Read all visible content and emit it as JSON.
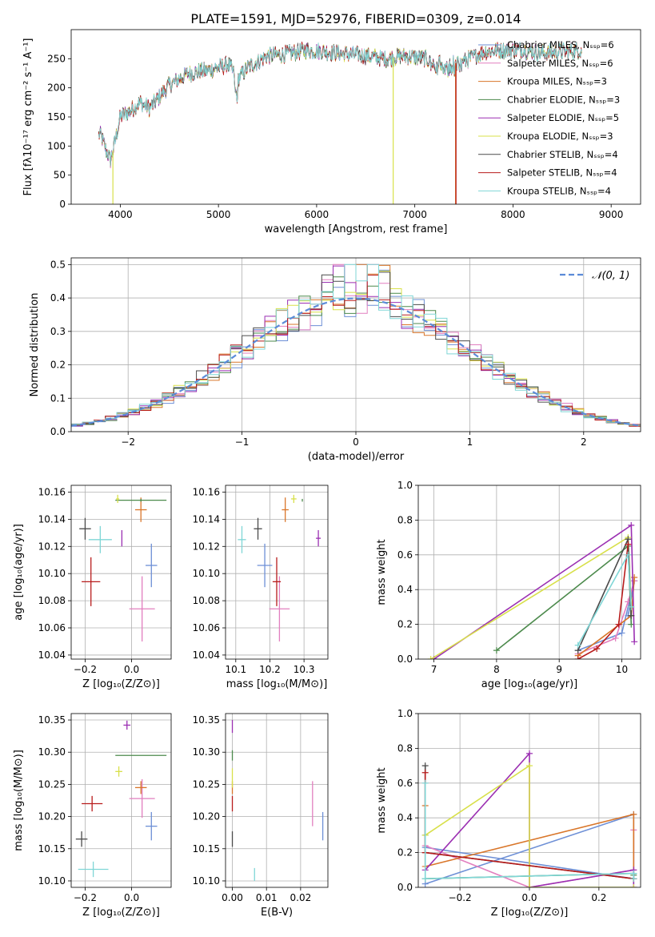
{
  "title": "PLATE=1591, MJD=52976, FIBERID=0309, z=0.014",
  "colors": {
    "Chabrier MILES": "#6d8fd6",
    "Salpeter MILES": "#e27fbf",
    "Kroupa MILES": "#d9762a",
    "Chabrier ELODIE": "#4c8a4c",
    "Salpeter ELODIE": "#9b2fb2",
    "Kroupa ELODIE": "#d8e04a",
    "Chabrier STELIB": "#4a4a4a",
    "Salpeter STELIB": "#b81c1c",
    "Kroupa STELIB": "#7fd6d6"
  },
  "chart_data": [
    {
      "id": "spectrum",
      "type": "line",
      "title": "PLATE=1591, MJD=52976, FIBERID=0309, z=0.014",
      "xlabel": "wavelength [Angstrom, rest frame]",
      "ylabel": "Flux [fλ10⁻¹⁷ erg cm⁻² s⁻¹ A⁻¹]",
      "xlim": [
        3500,
        9300
      ],
      "ylim": [
        0,
        300
      ],
      "xticks": [
        4000,
        5000,
        6000,
        7000,
        8000,
        9000
      ],
      "yticks": [
        0,
        50,
        100,
        150,
        200,
        250
      ],
      "grid": false,
      "legend_position": "top-right",
      "legend": [
        "Chabrier MILES, Nₛₛₚ=6",
        "Salpeter MILES, Nₛₛₚ=6",
        "Kroupa MILES, Nₛₛₚ=3",
        "Chabrier ELODIE, Nₛₛₚ=3",
        "Salpeter ELODIE, Nₛₛₚ=5",
        "Kroupa ELODIE, Nₛₛₚ=3",
        "Chabrier STELIB, Nₛₛₚ=4",
        "Salpeter STELIB, Nₛₛₚ=4",
        "Kroupa STELIB, Nₛₛₚ=4"
      ],
      "continuum": {
        "x": [
          3800,
          3850,
          3900,
          3950,
          4000,
          4100,
          4200,
          4300,
          4400,
          4500,
          4700,
          4900,
          5100,
          5200,
          5300,
          5500,
          5700,
          5900,
          6100,
          6300,
          6500,
          6700,
          6900,
          7100,
          7300,
          7500,
          7700,
          7900,
          8100,
          8300,
          8500,
          8700
        ],
        "y": [
          120,
          95,
          75,
          110,
          150,
          160,
          175,
          165,
          185,
          205,
          225,
          230,
          240,
          215,
          235,
          255,
          258,
          265,
          262,
          258,
          255,
          250,
          255,
          250,
          240,
          245,
          262,
          265,
          265,
          260,
          262,
          265
        ]
      },
      "drops": [
        {
          "series": "Kroupa ELODIE",
          "x": 3925,
          "to": 0
        },
        {
          "series": "Kroupa ELODIE",
          "x": 6780,
          "to": 0
        },
        {
          "series": "Kroupa MILES",
          "x": 7415,
          "to": 0
        },
        {
          "series": "Salpeter STELIB",
          "x": 7420,
          "to": 0
        }
      ]
    },
    {
      "id": "residuals",
      "type": "step",
      "xlabel": "(data-model)/error",
      "ylabel": "Normed distribution",
      "xlim": [
        -2.5,
        2.5
      ],
      "ylim": [
        0,
        0.52
      ],
      "xticks": [
        -2,
        -1,
        0,
        1,
        2
      ],
      "yticks": [
        0.0,
        0.1,
        0.2,
        0.3,
        0.4,
        0.5
      ],
      "grid": true,
      "legend_position": "top-right",
      "legend": [
        "𝒩(0, 1)"
      ],
      "reference_curve": "normal(0,1)",
      "bin_width": 0.1,
      "histogram_peak": 0.5
    },
    {
      "id": "age-vs-Z",
      "type": "errorbar",
      "xlabel": "Z [log₁₀(Z/Z⊙)]",
      "ylabel": "age  [log₁₀(age/yr)]",
      "xlim": [
        -0.26,
        0.17
      ],
      "ylim": [
        10.037,
        10.165
      ],
      "xticks": [
        -0.2,
        0.0
      ],
      "xticklabels": [
        "−0.2",
        "0.0"
      ],
      "yticks": [
        10.04,
        10.06,
        10.08,
        10.1,
        10.12,
        10.14,
        10.16
      ],
      "grid": true,
      "points": [
        {
          "series": "Chabrier MILES",
          "x": 0.085,
          "y": 10.106,
          "xerr": 0.025,
          "yerr": 0.016
        },
        {
          "series": "Salpeter MILES",
          "x": 0.045,
          "y": 10.074,
          "xerr": 0.055,
          "yerr": 0.024
        },
        {
          "series": "Kroupa MILES",
          "x": 0.04,
          "y": 10.147,
          "xerr": 0.025,
          "yerr": 0.009
        },
        {
          "series": "Chabrier ELODIE",
          "x": 0.04,
          "y": 10.154,
          "xerr": 0.11,
          "yerr": 0.001
        },
        {
          "series": "Salpeter ELODIE",
          "x": -0.042,
          "y": 10.126,
          "xerr": 0.0,
          "yerr": 0.006
        },
        {
          "series": "Kroupa ELODIE",
          "x": -0.06,
          "y": 10.155,
          "xerr": 0.007,
          "yerr": 0.003
        },
        {
          "series": "Chabrier STELIB",
          "x": -0.2,
          "y": 10.133,
          "xerr": 0.025,
          "yerr": 0.008
        },
        {
          "series": "Salpeter STELIB",
          "x": -0.175,
          "y": 10.094,
          "xerr": 0.04,
          "yerr": 0.018
        },
        {
          "series": "Kroupa STELIB",
          "x": -0.135,
          "y": 10.125,
          "xerr": 0.05,
          "yerr": 0.01
        }
      ]
    },
    {
      "id": "age-vs-mass",
      "type": "errorbar",
      "xlabel": "mass [log₁₀(M/M⊙)]",
      "xlim": [
        10.07,
        10.37
      ],
      "ylim": [
        10.037,
        10.165
      ],
      "xticks": [
        10.1,
        10.2,
        10.3
      ],
      "yticks": [
        10.04,
        10.06,
        10.08,
        10.1,
        10.12,
        10.14,
        10.16
      ],
      "grid": true,
      "points": [
        {
          "series": "Chabrier MILES",
          "x": 10.185,
          "y": 10.106,
          "xerr": 0.022,
          "yerr": 0.016
        },
        {
          "series": "Salpeter MILES",
          "x": 10.228,
          "y": 10.074,
          "xerr": 0.03,
          "yerr": 0.024
        },
        {
          "series": "Kroupa MILES",
          "x": 10.245,
          "y": 10.147,
          "xerr": 0.01,
          "yerr": 0.009
        },
        {
          "series": "Chabrier ELODIE",
          "x": 10.295,
          "y": 10.154,
          "xerr": 0.0,
          "yerr": 0.001
        },
        {
          "series": "Salpeter ELODIE",
          "x": 10.342,
          "y": 10.126,
          "xerr": 0.007,
          "yerr": 0.006
        },
        {
          "series": "Kroupa ELODIE",
          "x": 10.27,
          "y": 10.155,
          "xerr": 0.008,
          "yerr": 0.003
        },
        {
          "series": "Chabrier STELIB",
          "x": 10.165,
          "y": 10.133,
          "xerr": 0.012,
          "yerr": 0.008
        },
        {
          "series": "Salpeter STELIB",
          "x": 10.22,
          "y": 10.094,
          "xerr": 0.012,
          "yerr": 0.018
        },
        {
          "series": "Kroupa STELIB",
          "x": 10.118,
          "y": 10.125,
          "xerr": 0.012,
          "yerr": 0.01
        }
      ]
    },
    {
      "id": "weight-vs-age",
      "type": "line",
      "xlabel": "age  [log₁₀(age/yr)]",
      "ylabel": "mass weight",
      "xlim": [
        6.75,
        10.3
      ],
      "ylim": [
        0,
        1
      ],
      "xticks": [
        7,
        8,
        9,
        10
      ],
      "yticks": [
        0.0,
        0.2,
        0.4,
        0.6,
        0.8,
        1.0
      ],
      "grid": true,
      "series": [
        {
          "series": "Chabrier MILES",
          "x": [
            9.3,
            10.0,
            10.2,
            10.1
          ],
          "y": [
            0.05,
            0.15,
            0.45,
            0.25
          ]
        },
        {
          "series": "Salpeter MILES",
          "x": [
            9.3,
            9.9,
            10.1,
            10.2
          ],
          "y": [
            0.03,
            0.12,
            0.33,
            0.45
          ]
        },
        {
          "series": "Kroupa MILES",
          "x": [
            9.3,
            10.15,
            10.2
          ],
          "y": [
            0.02,
            0.25,
            0.47
          ]
        },
        {
          "series": "Chabrier ELODIE",
          "x": [
            8.0,
            10.1,
            10.15
          ],
          "y": [
            0.05,
            0.65,
            0.2
          ]
        },
        {
          "series": "Salpeter ELODIE",
          "x": [
            7.0,
            10.15,
            10.2
          ],
          "y": [
            0.0,
            0.77,
            0.1
          ]
        },
        {
          "series": "Kroupa ELODIE",
          "x": [
            6.95,
            10.1,
            10.15
          ],
          "y": [
            0.0,
            0.7,
            0.3
          ]
        },
        {
          "series": "Chabrier STELIB",
          "x": [
            9.3,
            10.1,
            10.15
          ],
          "y": [
            0.05,
            0.69,
            0.25
          ]
        },
        {
          "series": "Salpeter STELIB",
          "x": [
            9.3,
            9.6,
            9.95,
            10.1
          ],
          "y": [
            0.0,
            0.06,
            0.2,
            0.66
          ]
        },
        {
          "series": "Kroupa STELIB",
          "x": [
            9.3,
            10.1,
            10.15
          ],
          "y": [
            0.08,
            0.6,
            0.3
          ]
        }
      ]
    },
    {
      "id": "mass-vs-Z",
      "type": "errorbar",
      "xlabel": "Z [log₁₀(Z/Z⊙)]",
      "ylabel": "mass [log₁₀(M/M⊙)]",
      "xlim": [
        -0.26,
        0.17
      ],
      "ylim": [
        10.09,
        10.36
      ],
      "xticks": [
        -0.2,
        0.0
      ],
      "xticklabels": [
        "−0.2",
        "0.0"
      ],
      "yticks": [
        10.1,
        10.15,
        10.2,
        10.25,
        10.3,
        10.35
      ],
      "grid": true,
      "points": [
        {
          "series": "Chabrier MILES",
          "x": 0.085,
          "y": 10.185,
          "xerr": 0.025,
          "yerr": 0.022
        },
        {
          "series": "Salpeter MILES",
          "x": 0.045,
          "y": 10.228,
          "xerr": 0.055,
          "yerr": 0.03
        },
        {
          "series": "Kroupa MILES",
          "x": 0.04,
          "y": 10.245,
          "xerr": 0.025,
          "yerr": 0.01
        },
        {
          "series": "Chabrier ELODIE",
          "x": 0.04,
          "y": 10.295,
          "xerr": 0.11,
          "yerr": 0.0
        },
        {
          "series": "Salpeter ELODIE",
          "x": -0.02,
          "y": 10.342,
          "xerr": 0.015,
          "yerr": 0.007
        },
        {
          "series": "Kroupa ELODIE",
          "x": -0.055,
          "y": 10.27,
          "xerr": 0.015,
          "yerr": 0.008
        },
        {
          "series": "Chabrier STELIB",
          "x": -0.215,
          "y": 10.165,
          "xerr": 0.025,
          "yerr": 0.012
        },
        {
          "series": "Salpeter STELIB",
          "x": -0.17,
          "y": 10.22,
          "xerr": 0.045,
          "yerr": 0.012
        },
        {
          "series": "Kroupa STELIB",
          "x": -0.165,
          "y": 10.118,
          "xerr": 0.065,
          "yerr": 0.012
        }
      ]
    },
    {
      "id": "mass-vs-ebv",
      "type": "errorbar",
      "xlabel": "E(B-V)",
      "xlim": [
        -0.002,
        0.028
      ],
      "ylim": [
        10.09,
        10.36
      ],
      "xticks": [
        0.0,
        0.01,
        0.02
      ],
      "xticklabels": [
        "0.00",
        "0.01",
        "0.02"
      ],
      "yticks": [
        10.1,
        10.15,
        10.2,
        10.25,
        10.3,
        10.35
      ],
      "grid": true,
      "points": [
        {
          "series": "Chabrier MILES",
          "x": 0.0265,
          "y": 10.185,
          "xerr": 0.0,
          "yerr": 0.022
        },
        {
          "series": "Salpeter MILES",
          "x": 0.0235,
          "y": 10.22,
          "xerr": 0.0,
          "yerr": 0.035
        },
        {
          "series": "Kroupa MILES",
          "x": 0.0,
          "y": 10.245,
          "xerr": 0.0,
          "yerr": 0.01
        },
        {
          "series": "Chabrier ELODIE",
          "x": 0.0,
          "y": 10.295,
          "xerr": 0.0,
          "yerr": 0.008
        },
        {
          "series": "Salpeter ELODIE",
          "x": 0.0,
          "y": 10.34,
          "xerr": 0.0,
          "yerr": 0.01
        },
        {
          "series": "Kroupa ELODIE",
          "x": 0.0,
          "y": 10.26,
          "xerr": 0.0,
          "yerr": 0.015
        },
        {
          "series": "Chabrier STELIB",
          "x": 0.0,
          "y": 10.165,
          "xerr": 0.0,
          "yerr": 0.012
        },
        {
          "series": "Salpeter STELIB",
          "x": 0.0,
          "y": 10.22,
          "xerr": 0.0,
          "yerr": 0.012
        },
        {
          "series": "Kroupa STELIB",
          "x": 0.0065,
          "y": 10.11,
          "xerr": 0.0,
          "yerr": 0.01
        }
      ]
    },
    {
      "id": "weight-vs-Z",
      "type": "line",
      "xlabel": "Z [log₁₀(Z/Z⊙)]",
      "ylabel": "mass weight",
      "xlim": [
        -0.32,
        0.32
      ],
      "ylim": [
        0,
        1
      ],
      "xticks": [
        -0.2,
        0.0,
        0.2
      ],
      "xticklabels": [
        "−0.2",
        "0.0",
        "0.2"
      ],
      "yticks": [
        0.0,
        0.2,
        0.4,
        0.6,
        0.8,
        1.0
      ],
      "grid": true,
      "series": [
        {
          "series": "Chabrier MILES",
          "x": [
            -0.3,
            0.3,
            0.3,
            -0.3,
            -0.3
          ],
          "y": [
            0.02,
            0.42,
            0.05,
            0.23,
            0.3
          ]
        },
        {
          "series": "Salpeter MILES",
          "x": [
            -0.3,
            0.0,
            0.3,
            0.3
          ],
          "y": [
            0.24,
            0.0,
            0.1,
            0.33
          ]
        },
        {
          "series": "Kroupa MILES",
          "x": [
            -0.3,
            -0.3,
            0.3,
            0.3
          ],
          "y": [
            0.47,
            0.12,
            0.42,
            0.05
          ]
        },
        {
          "series": "Chabrier ELODIE",
          "x": [
            -0.3,
            0.3,
            0.3
          ],
          "y": [
            0.05,
            0.08,
            0.07
          ]
        },
        {
          "series": "Salpeter ELODIE",
          "x": [
            -0.3,
            0.0,
            0.0,
            0.3,
            0.3
          ],
          "y": [
            0.1,
            0.77,
            0.0,
            0.1,
            0.0
          ]
        },
        {
          "series": "Kroupa ELODIE",
          "x": [
            -0.3,
            0.0,
            0.0,
            0.3
          ],
          "y": [
            0.3,
            0.7,
            0.0,
            0.0
          ]
        },
        {
          "series": "Chabrier STELIB",
          "x": [
            -0.3,
            -0.3,
            0.3
          ],
          "y": [
            0.7,
            0.2,
            0.05
          ]
        },
        {
          "series": "Salpeter STELIB",
          "x": [
            -0.3,
            -0.3,
            0.3
          ],
          "y": [
            0.66,
            0.2,
            0.05
          ]
        },
        {
          "series": "Kroupa STELIB",
          "x": [
            -0.3,
            -0.3,
            0.3,
            0.3
          ],
          "y": [
            0.6,
            0.05,
            0.08,
            0.05
          ]
        }
      ]
    }
  ]
}
